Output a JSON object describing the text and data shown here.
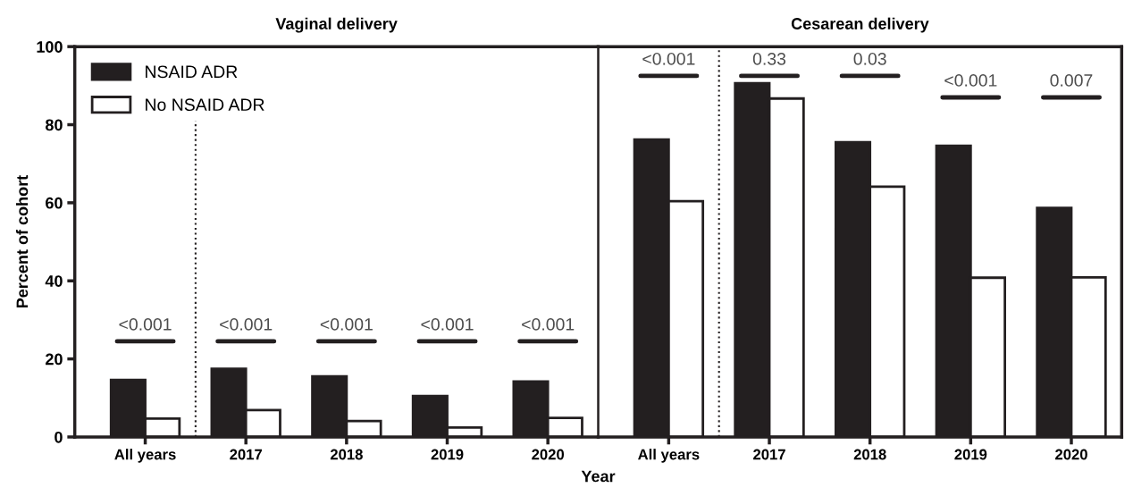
{
  "chart_data": [
    {
      "type": "bar",
      "title": "Vaginal delivery",
      "ylabel": "Percent of cohort",
      "categories": [
        "All years",
        "2017",
        "2018",
        "2019",
        "2020"
      ],
      "series": [
        {
          "name": "NSAID ADR",
          "color": "#231f20",
          "values": [
            14.6,
            17.5,
            15.5,
            10.5,
            14.2
          ]
        },
        {
          "name": "No NSAID ADR",
          "color": "#ffffff",
          "values": [
            4.7,
            6.9,
            4.1,
            2.4,
            4.9
          ]
        }
      ],
      "ylim": [
        0,
        100
      ],
      "yticks": [
        0,
        20,
        40,
        60,
        80,
        100
      ],
      "legend": "top left",
      "annotations": [
        "<0.001",
        "<0.001",
        "<0.001",
        "<0.001",
        "<0.001"
      ]
    },
    {
      "type": "bar",
      "title": "Cesarean delivery",
      "xlabel": "Year",
      "categories": [
        "All years",
        "2017",
        "2018",
        "2019",
        "2020"
      ],
      "series": [
        {
          "color": "#231f20",
          "values": [
            76.2,
            90.6,
            75.5,
            74.6,
            58.7
          ]
        },
        {
          "color": "#ffffff",
          "values": [
            60.4,
            86.7,
            64.1,
            40.8,
            40.9
          ]
        }
      ],
      "ylim": [
        0,
        100
      ],
      "tick_labels": "x",
      "annotations": [
        "<0.001",
        "0.33",
        "0.03",
        "<0.001",
        "0.007"
      ]
    }
  ]
}
